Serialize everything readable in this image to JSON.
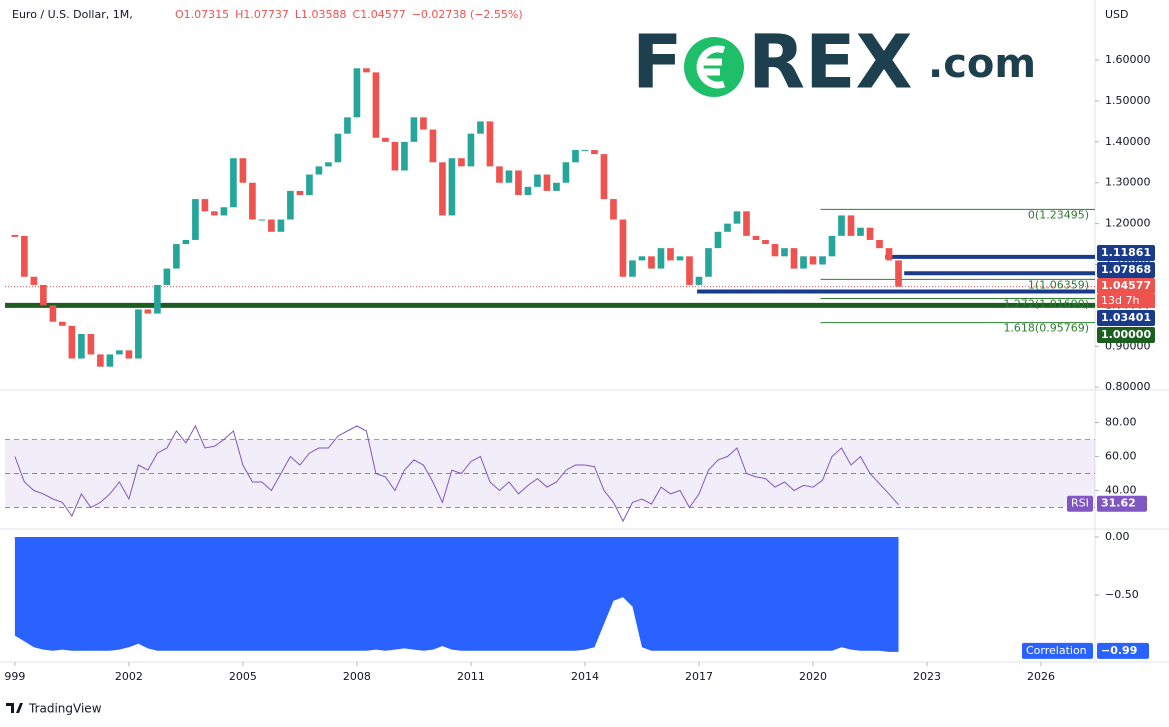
{
  "header": {
    "symbol": "Euro / U.S. Dollar, 1M,",
    "ohlc": [
      "O1.07315",
      "H1.07737",
      "L1.03588",
      "C1.04577",
      "−0.02738 (−2.55%)"
    ],
    "currency": "USD",
    "countdown": "13d 7h"
  },
  "logo": {
    "parts": [
      "F",
      "REX",
      ".com"
    ]
  },
  "footer": "TradingView",
  "chart_data": [
    {
      "type": "candlestick",
      "x": [
        1999,
        1999.25,
        1999.5,
        1999.75,
        2000,
        2000.25,
        2000.5,
        2000.75,
        2001,
        2001.25,
        2001.5,
        2001.75,
        2002,
        2002.25,
        2002.5,
        2002.75,
        2003,
        2003.25,
        2003.5,
        2003.75,
        2004,
        2004.25,
        2004.5,
        2004.75,
        2005,
        2005.25,
        2005.5,
        2005.75,
        2006,
        2006.25,
        2006.5,
        2006.75,
        2007,
        2007.25,
        2007.5,
        2007.75,
        2008,
        2008.25,
        2008.5,
        2008.75,
        2009,
        2009.25,
        2009.5,
        2009.75,
        2010,
        2010.25,
        2010.5,
        2010.75,
        2011,
        2011.25,
        2011.5,
        2011.75,
        2012,
        2012.25,
        2012.5,
        2012.75,
        2013,
        2013.25,
        2013.5,
        2013.75,
        2014,
        2014.25,
        2014.5,
        2014.75,
        2015,
        2015.25,
        2015.5,
        2015.75,
        2016,
        2016.25,
        2016.5,
        2016.75,
        2017,
        2017.25,
        2017.5,
        2017.75,
        2018,
        2018.25,
        2018.5,
        2018.75,
        2019,
        2019.25,
        2019.5,
        2019.75,
        2020,
        2020.25,
        2020.5,
        2020.75,
        2021,
        2021.25,
        2021.5,
        2021.75,
        2022,
        2022.25
      ],
      "values": [
        1.17,
        1.07,
        1.05,
        1.0,
        0.96,
        0.95,
        0.87,
        0.93,
        0.88,
        0.85,
        0.88,
        0.89,
        0.87,
        0.99,
        0.98,
        1.05,
        1.09,
        1.15,
        1.16,
        1.26,
        1.23,
        1.22,
        1.24,
        1.36,
        1.3,
        1.21,
        1.21,
        1.18,
        1.21,
        1.28,
        1.27,
        1.32,
        1.34,
        1.35,
        1.42,
        1.46,
        1.58,
        1.57,
        1.41,
        1.4,
        1.33,
        1.4,
        1.46,
        1.43,
        1.35,
        1.22,
        1.36,
        1.34,
        1.42,
        1.45,
        1.34,
        1.3,
        1.33,
        1.27,
        1.29,
        1.32,
        1.28,
        1.3,
        1.35,
        1.38,
        1.38,
        1.37,
        1.26,
        1.21,
        1.07,
        1.11,
        1.12,
        1.09,
        1.14,
        1.11,
        1.12,
        1.05,
        1.07,
        1.14,
        1.18,
        1.2,
        1.23,
        1.17,
        1.16,
        1.15,
        1.12,
        1.14,
        1.09,
        1.12,
        1.1,
        1.12,
        1.17,
        1.22,
        1.17,
        1.19,
        1.16,
        1.14,
        1.11,
        1.04577
      ],
      "up_color": "#26a69a",
      "down_color": "#ef5350",
      "xlim": [
        1998.74,
        2027.42
      ],
      "ylim": [
        0.793,
        1.747
      ],
      "yticks": [
        {
          "value": 0.8,
          "label": "0.80000"
        },
        {
          "value": 0.9,
          "label": "0.90000"
        },
        {
          "value": 1.0,
          "label": "1.00000"
        },
        {
          "value": 1.1,
          "label": "1.10000"
        },
        {
          "value": 1.2,
          "label": "1.20000"
        },
        {
          "value": 1.3,
          "label": "1.30000"
        },
        {
          "value": 1.4,
          "label": "1.40000"
        },
        {
          "value": 1.5,
          "label": "1.50000"
        },
        {
          "value": 1.6,
          "label": "1.60000"
        }
      ],
      "levels": [
        {
          "value": 1.11861,
          "color": "#1a3a8c",
          "from": 2021.9
        },
        {
          "value": 1.07868,
          "color": "#1a3a8c",
          "from": 2022.4
        },
        {
          "value": 1.03401,
          "color": "#1a3a8c",
          "from": 2016.95
        },
        {
          "value": 1.0,
          "label": "1.00000",
          "color": "#1b5e20",
          "from": 1998.74
        }
      ],
      "last": {
        "value": 1.04577,
        "color": "#ef5350"
      },
      "fib": [
        {
          "value": 1.23495,
          "label": "0(1.23495)"
        },
        {
          "value": 1.06359,
          "label": "1(1.06359)"
        },
        {
          "value": 1.0169,
          "label": "1.272(1.01690)"
        },
        {
          "value": 0.95769,
          "label": "1.618(0.95769)"
        }
      ],
      "fib_from": 2020.2
    },
    {
      "type": "line",
      "name": "RSI",
      "color": "#7e57c2",
      "x": [
        1999,
        1999.25,
        1999.5,
        1999.75,
        2000,
        2000.25,
        2000.5,
        2000.75,
        2001,
        2001.25,
        2001.5,
        2001.75,
        2002,
        2002.25,
        2002.5,
        2002.75,
        2003,
        2003.25,
        2003.5,
        2003.75,
        2004,
        2004.25,
        2004.5,
        2004.75,
        2005,
        2005.25,
        2005.5,
        2005.75,
        2006,
        2006.25,
        2006.5,
        2006.75,
        2007,
        2007.25,
        2007.5,
        2007.75,
        2008,
        2008.25,
        2008.5,
        2008.75,
        2009,
        2009.25,
        2009.5,
        2009.75,
        2010,
        2010.25,
        2010.5,
        2010.75,
        2011,
        2011.25,
        2011.5,
        2011.75,
        2012,
        2012.25,
        2012.5,
        2012.75,
        2013,
        2013.25,
        2013.5,
        2013.75,
        2014,
        2014.25,
        2014.5,
        2014.75,
        2015,
        2015.25,
        2015.5,
        2015.75,
        2016,
        2016.25,
        2016.5,
        2016.75,
        2017,
        2017.25,
        2017.5,
        2017.75,
        2018,
        2018.25,
        2018.5,
        2018.75,
        2019,
        2019.25,
        2019.5,
        2019.75,
        2020,
        2020.25,
        2020.5,
        2020.75,
        2021,
        2021.25,
        2021.5,
        2021.75,
        2022,
        2022.25
      ],
      "values": [
        60,
        45,
        40,
        38,
        35,
        33,
        25,
        38,
        30,
        33,
        38,
        45,
        35,
        55,
        52,
        62,
        65,
        75,
        68,
        78,
        65,
        66,
        70,
        75,
        55,
        45,
        45,
        40,
        50,
        60,
        55,
        62,
        65,
        65,
        72,
        75,
        78,
        75,
        50,
        48,
        40,
        52,
        58,
        55,
        45,
        33,
        52,
        50,
        57,
        60,
        45,
        40,
        45,
        38,
        43,
        47,
        42,
        45,
        52,
        55,
        55,
        54,
        40,
        33,
        22,
        33,
        35,
        32,
        42,
        38,
        40,
        30,
        38,
        52,
        58,
        60,
        65,
        50,
        48,
        47,
        42,
        45,
        40,
        43,
        42,
        46,
        60,
        65,
        55,
        60,
        50,
        44,
        38,
        31.62
      ],
      "xlim": [
        1998.74,
        2027.42
      ],
      "ylim": [
        18.5,
        99.1
      ],
      "yticks": [
        {
          "value": 40,
          "label": "40.00"
        },
        {
          "value": 60,
          "label": "60.00"
        },
        {
          "value": 80,
          "label": "80.00"
        }
      ],
      "bands": [
        30,
        50,
        70
      ],
      "badge": 31.62
    },
    {
      "type": "area",
      "name": "Correlation",
      "color": "#2962ff",
      "x": [
        1999,
        1999.25,
        1999.5,
        1999.75,
        2000,
        2000.25,
        2000.5,
        2000.75,
        2001,
        2001.25,
        2001.5,
        2001.75,
        2002,
        2002.25,
        2002.5,
        2002.75,
        2003,
        2003.25,
        2003.5,
        2003.75,
        2004,
        2004.25,
        2004.5,
        2004.75,
        2005,
        2005.25,
        2005.5,
        2005.75,
        2006,
        2006.25,
        2006.5,
        2006.75,
        2007,
        2007.25,
        2007.5,
        2007.75,
        2008,
        2008.25,
        2008.5,
        2008.75,
        2009,
        2009.25,
        2009.5,
        2009.75,
        2010,
        2010.25,
        2010.5,
        2010.75,
        2011,
        2011.25,
        2011.5,
        2011.75,
        2012,
        2012.25,
        2012.5,
        2012.75,
        2013,
        2013.25,
        2013.5,
        2013.75,
        2014,
        2014.25,
        2014.5,
        2014.75,
        2015,
        2015.25,
        2015.5,
        2015.75,
        2016,
        2016.25,
        2016.5,
        2016.75,
        2017,
        2017.25,
        2017.5,
        2017.75,
        2018,
        2018.25,
        2018.5,
        2018.75,
        2019,
        2019.25,
        2019.5,
        2019.75,
        2020,
        2020.25,
        2020.5,
        2020.75,
        2021,
        2021.25,
        2021.5,
        2021.75,
        2022,
        2022.25
      ],
      "values": [
        -0.85,
        -0.9,
        -0.95,
        -0.97,
        -0.98,
        -0.97,
        -0.98,
        -0.98,
        -0.98,
        -0.98,
        -0.98,
        -0.97,
        -0.95,
        -0.92,
        -0.96,
        -0.98,
        -0.98,
        -0.98,
        -0.98,
        -0.98,
        -0.98,
        -0.98,
        -0.98,
        -0.98,
        -0.98,
        -0.98,
        -0.98,
        -0.98,
        -0.98,
        -0.98,
        -0.98,
        -0.98,
        -0.98,
        -0.98,
        -0.98,
        -0.98,
        -0.98,
        -0.98,
        -0.97,
        -0.98,
        -0.97,
        -0.96,
        -0.97,
        -0.98,
        -0.97,
        -0.94,
        -0.97,
        -0.98,
        -0.98,
        -0.98,
        -0.98,
        -0.98,
        -0.98,
        -0.98,
        -0.98,
        -0.98,
        -0.98,
        -0.98,
        -0.98,
        -0.98,
        -0.97,
        -0.95,
        -0.75,
        -0.55,
        -0.52,
        -0.6,
        -0.95,
        -0.98,
        -0.98,
        -0.98,
        -0.98,
        -0.98,
        -0.98,
        -0.98,
        -0.98,
        -0.98,
        -0.98,
        -0.98,
        -0.98,
        -0.98,
        -0.98,
        -0.98,
        -0.98,
        -0.98,
        -0.98,
        -0.98,
        -0.98,
        -0.95,
        -0.97,
        -0.98,
        -0.98,
        -0.98,
        -0.99,
        -0.99
      ],
      "xlim": [
        1998.74,
        2027.42
      ],
      "ylim": [
        -1.06,
        0.06
      ],
      "yticks": [
        {
          "value": 0,
          "label": "0.00"
        },
        {
          "value": -0.5,
          "label": "−0.50"
        }
      ],
      "badge": {
        "value": -0.99,
        "label": "−0.99"
      },
      "xticks": [
        {
          "value": 1999,
          "label": "999"
        },
        2002,
        2005,
        2008,
        2011,
        2014,
        2017,
        2020,
        2023,
        2026
      ]
    }
  ]
}
